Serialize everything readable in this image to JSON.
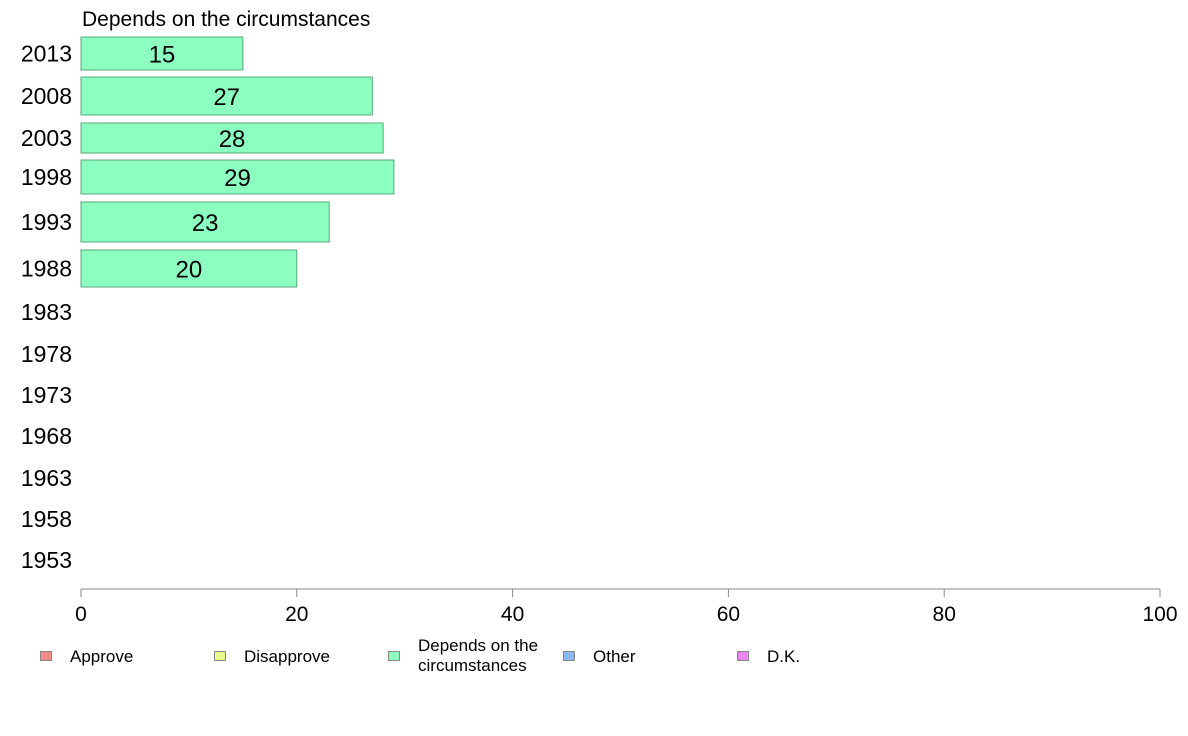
{
  "chart_data": {
    "type": "bar",
    "orientation": "horizontal",
    "title": "Depends on the circumstances",
    "categories": [
      "2013",
      "2008",
      "2003",
      "1998",
      "1993",
      "1988",
      "1983",
      "1978",
      "1973",
      "1968",
      "1963",
      "1958",
      "1953"
    ],
    "values": [
      15,
      27,
      28,
      29,
      23,
      20,
      null,
      null,
      null,
      null,
      null,
      null,
      null
    ],
    "value_labels": [
      "15",
      "27",
      "28",
      "29",
      "23",
      "20",
      "",
      "",
      "",
      "",
      "",
      "",
      ""
    ],
    "xlim": [
      0,
      100
    ],
    "xticks": [
      0,
      20,
      40,
      60,
      80,
      100
    ],
    "bar_color": "#8cffc0",
    "bar_stroke": "#5aa77c",
    "legend_position": "bottom",
    "legend": [
      {
        "label": "Approve",
        "color": "#f28a8a"
      },
      {
        "label": "Disapprove",
        "color": "#e9f98a"
      },
      {
        "label": "Depends on the\ncircumstances",
        "color": "#8cffc0"
      },
      {
        "label": "Other",
        "color": "#8ab8f5"
      },
      {
        "label": "D.K.",
        "color": "#ec84f2"
      }
    ]
  }
}
